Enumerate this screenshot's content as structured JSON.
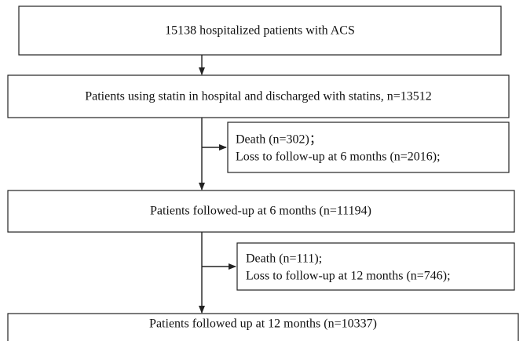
{
  "nodes": [
    {
      "label": "15138 hospitalized patients with ACS"
    },
    {
      "label": "Patients using statin in hospital and discharged with statins, n=13512"
    },
    {
      "lines": [
        "Death (n=302)；",
        "Loss to follow-up at 6 months (n=2016);"
      ]
    },
    {
      "label": "Patients followed-up at 6 months (n=11194)"
    },
    {
      "lines": [
        "Death (n=111);",
        "Loss to follow-up at 12 months (n=746);"
      ]
    },
    {
      "label": "Patients followed up at 12 months (n=10337)"
    }
  ]
}
